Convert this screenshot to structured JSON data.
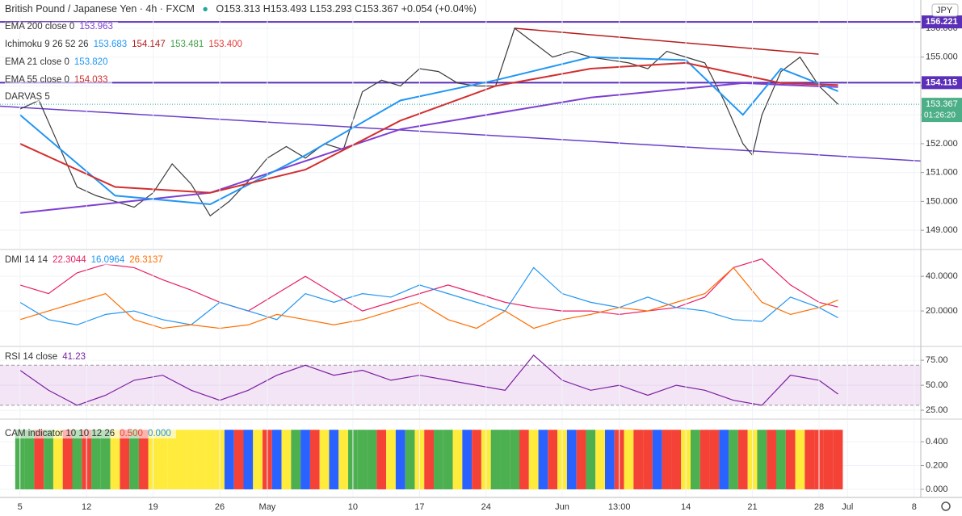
{
  "header": {
    "title": "British Pound / Japanese Yen · 4h · FXCM",
    "ohlc": "O153.313 H153.493 L153.293 C153.367 +0.054 (+0.04%)",
    "currency": "JPY",
    "countdown": "01:26:20"
  },
  "chart_data": [
    {
      "type": "line",
      "xlim": [
        -2.1,
        94.7
      ],
      "ylim": [
        148.36,
        156.98
      ],
      "yticks": [
        {
          "value": 149,
          "label": "149.000"
        },
        {
          "value": 150,
          "label": "150.000"
        },
        {
          "value": 151,
          "label": "151.000"
        },
        {
          "value": 152,
          "label": "152.000"
        },
        {
          "value": 153,
          "label": "153.000"
        },
        {
          "value": 154,
          "label": "154.000"
        },
        {
          "value": 155,
          "label": "155.000"
        },
        {
          "value": 156,
          "label": "156.000"
        }
      ],
      "series": [
        {
          "color": "#3b3b3b",
          "x": [
            0,
            2,
            4,
            6,
            8,
            10,
            12,
            14,
            16,
            18,
            20,
            22,
            24,
            26,
            28,
            30,
            32,
            34,
            36,
            38,
            40,
            42,
            44,
            46,
            48,
            50,
            52,
            54,
            56,
            58,
            60,
            62,
            64,
            66,
            68,
            70,
            72,
            74,
            76,
            77,
            78,
            80,
            82,
            84,
            86
          ],
          "values": [
            153.2,
            153.5,
            152.0,
            150.5,
            150.2,
            150.0,
            149.8,
            150.3,
            151.3,
            150.6,
            149.5,
            150.0,
            150.7,
            151.5,
            151.9,
            151.5,
            152.0,
            151.8,
            153.8,
            154.2,
            154.0,
            154.6,
            154.5,
            154.1,
            154.0,
            154.0,
            156.0,
            155.5,
            155.0,
            155.2,
            155.0,
            154.9,
            154.8,
            154.6,
            155.2,
            155.0,
            154.8,
            153.5,
            152.0,
            151.6,
            153.0,
            154.5,
            155.0,
            154.0,
            153.367
          ]
        },
        {
          "name": "EMA 200 close 0",
          "legend_value": "153.963",
          "color": "#7e3fd1",
          "x": [
            0,
            20,
            40,
            60,
            76,
            86
          ],
          "values": [
            149.6,
            150.3,
            152.5,
            153.6,
            154.1,
            153.963
          ]
        },
        {
          "name": "EMA 21 close 0",
          "legend_value": "153.820",
          "color": "#2196f3",
          "x": [
            0,
            10,
            20,
            30,
            40,
            50,
            60,
            70,
            76,
            80,
            86
          ],
          "values": [
            153.0,
            150.2,
            149.9,
            151.6,
            153.5,
            154.2,
            155.0,
            154.9,
            153.0,
            154.6,
            153.82
          ]
        },
        {
          "name": "EMA 55 close 0",
          "legend_value": "154.033",
          "color": "#d32f2f",
          "x": [
            0,
            10,
            20,
            30,
            40,
            50,
            60,
            70,
            80,
            86
          ],
          "values": [
            152.0,
            150.5,
            150.3,
            151.1,
            152.8,
            154.0,
            154.6,
            154.8,
            154.1,
            154.033
          ]
        }
      ],
      "ichimoku": {
        "name": "Ichimoku 9 26 52 26",
        "legend_values": [
          "153.683",
          "154.147",
          "153.481",
          "153.400"
        ],
        "colors": [
          "#2196f3",
          "#b71c1c",
          "#43a047",
          "#e53935"
        ]
      },
      "darvas": "DARVAS 5",
      "levels": [
        {
          "value": 156.221,
          "label": "156.221",
          "color": "#5b2fb8"
        },
        {
          "value": 154.115,
          "label": "154.115",
          "color": "#5b2fb8"
        }
      ],
      "trendlines": [
        {
          "x": [
            -2.1,
            94.7
          ],
          "values": [
            153.3,
            151.4
          ],
          "color": "#6a3fc8"
        },
        {
          "x": [
            52,
            84
          ],
          "values": [
            156.0,
            155.1
          ],
          "color": "#b71c1c"
        }
      ]
    },
    {
      "type": "line",
      "title": "DMI 14 14",
      "xlim": [
        -2.1,
        94.7
      ],
      "ylim": [
        0,
        55
      ],
      "yticks": [
        {
          "value": 20,
          "label": "20.0000"
        },
        {
          "value": 40,
          "label": "40.0000"
        }
      ],
      "series": [
        {
          "legend_value": "22.3044",
          "color": "#e91e63",
          "x": [
            0,
            3,
            6,
            9,
            12,
            15,
            18,
            21,
            24,
            27,
            30,
            33,
            36,
            39,
            42,
            45,
            48,
            51,
            54,
            57,
            60,
            63,
            66,
            69,
            72,
            75,
            78,
            81,
            84,
            86
          ],
          "values": [
            35,
            30,
            42,
            47,
            45,
            38,
            32,
            25,
            20,
            30,
            40,
            30,
            20,
            25,
            30,
            35,
            30,
            25,
            22,
            20,
            20,
            18,
            20,
            22,
            28,
            45,
            50,
            35,
            25,
            22.3
          ]
        },
        {
          "legend_value": "16.0964",
          "color": "#2196f3",
          "x": [
            0,
            3,
            6,
            9,
            12,
            15,
            18,
            21,
            24,
            27,
            30,
            33,
            36,
            39,
            42,
            45,
            48,
            51,
            54,
            57,
            60,
            63,
            66,
            69,
            72,
            75,
            78,
            81,
            84,
            86
          ],
          "values": [
            25,
            15,
            12,
            18,
            20,
            15,
            12,
            25,
            20,
            15,
            30,
            25,
            30,
            28,
            35,
            30,
            25,
            20,
            45,
            30,
            25,
            22,
            28,
            22,
            20,
            15,
            14,
            28,
            22,
            16.1
          ]
        },
        {
          "legend_value": "26.3137",
          "color": "#ff6d00",
          "x": [
            0,
            3,
            6,
            9,
            12,
            15,
            18,
            21,
            24,
            27,
            30,
            33,
            36,
            39,
            42,
            45,
            48,
            51,
            54,
            57,
            60,
            63,
            66,
            69,
            72,
            75,
            78,
            81,
            84,
            86
          ],
          "values": [
            15,
            20,
            25,
            30,
            15,
            10,
            12,
            10,
            12,
            18,
            15,
            12,
            15,
            20,
            25,
            15,
            10,
            20,
            10,
            15,
            18,
            22,
            20,
            25,
            30,
            45,
            25,
            18,
            22,
            26.3
          ]
        }
      ]
    },
    {
      "type": "line",
      "title": "RSI 14 close",
      "xlim": [
        -2.1,
        94.7
      ],
      "ylim": [
        17,
        88
      ],
      "band": [
        30,
        70
      ],
      "yticks": [
        {
          "value": 25,
          "label": "25.00"
        },
        {
          "value": 50,
          "label": "50.00"
        },
        {
          "value": 75,
          "label": "75.00"
        }
      ],
      "series": [
        {
          "legend_value": "41.23",
          "color": "#7b1fa2",
          "x": [
            0,
            3,
            6,
            9,
            12,
            15,
            18,
            21,
            24,
            27,
            30,
            33,
            36,
            39,
            42,
            45,
            48,
            51,
            54,
            57,
            60,
            63,
            66,
            69,
            72,
            75,
            78,
            81,
            84,
            86
          ],
          "values": [
            65,
            45,
            30,
            40,
            55,
            60,
            45,
            35,
            45,
            60,
            70,
            60,
            65,
            55,
            60,
            55,
            50,
            45,
            80,
            55,
            45,
            50,
            40,
            50,
            45,
            35,
            30,
            60,
            55,
            41.23
          ]
        }
      ]
    },
    {
      "type": "bar",
      "title": "CAM indicator 10 10 12 26",
      "xlim": [
        -2.1,
        94.7
      ],
      "ylim": [
        -0.068,
        0.583
      ],
      "cam_value": 0.5,
      "cam_value_label": "0.500",
      "cam_zero_label": "0.000",
      "yticks": [
        {
          "value": 0,
          "label": "0.000"
        },
        {
          "value": 0.2,
          "label": "0.200"
        },
        {
          "value": 0.4,
          "label": "0.400"
        }
      ],
      "x": [
        0,
        1,
        2,
        3,
        4,
        5,
        6,
        7,
        8,
        9,
        10,
        11,
        12,
        13,
        14,
        15,
        16,
        17,
        18,
        19,
        20,
        21,
        22,
        23,
        24,
        25,
        26,
        27,
        28,
        29,
        30,
        31,
        32,
        33,
        34,
        35,
        36,
        37,
        38,
        39,
        40,
        41,
        42,
        43,
        44,
        45,
        46,
        47,
        48,
        49,
        50,
        51,
        52,
        53,
        54,
        55,
        56,
        57,
        58,
        59,
        60,
        61,
        62,
        63,
        64,
        65,
        66,
        67,
        68,
        69,
        70,
        71,
        72,
        73,
        74,
        75,
        76,
        77,
        78,
        79,
        80,
        81,
        82,
        83,
        84,
        85,
        86
      ],
      "colors": [
        "#4caf50",
        "#4caf50",
        "#f44336",
        "#4caf50",
        "#ffeb3b",
        "#f44336",
        "#4caf50",
        "#f44336",
        "#4caf50",
        "#4caf50",
        "#ffeb3b",
        "#f44336",
        "#4caf50",
        "#f44336",
        "#ffeb3b",
        "#ffeb3b",
        "#ffeb3b",
        "#ffeb3b",
        "#ffeb3b",
        "#ffeb3b",
        "#ffeb3b",
        "#ffeb3b",
        "#2962ff",
        "#f44336",
        "#2962ff",
        "#ffeb3b",
        "#f44336",
        "#2962ff",
        "#ffeb3b",
        "#4caf50",
        "#2962ff",
        "#f44336",
        "#ffeb3b",
        "#2962ff",
        "#ffeb3b",
        "#4caf50",
        "#4caf50",
        "#4caf50",
        "#f44336",
        "#ffeb3b",
        "#2962ff",
        "#4caf50",
        "#ffeb3b",
        "#f44336",
        "#4caf50",
        "#4caf50",
        "#ffeb3b",
        "#2962ff",
        "#f44336",
        "#ffeb3b",
        "#4caf50",
        "#4caf50",
        "#4caf50",
        "#f44336",
        "#ffeb3b",
        "#2962ff",
        "#f44336",
        "#ffeb3b",
        "#2962ff",
        "#f44336",
        "#4caf50",
        "#ffeb3b",
        "#2962ff",
        "#f44336",
        "#ffeb3b",
        "#f44336",
        "#f44336",
        "#2962ff",
        "#f44336",
        "#f44336",
        "#ffeb3b",
        "#4caf50",
        "#f44336",
        "#f44336",
        "#2962ff",
        "#4caf50",
        "#f44336",
        "#ffeb3b",
        "#4caf50",
        "#f44336",
        "#4caf50",
        "#f44336",
        "#ffeb3b",
        "#f44336",
        "#f44336",
        "#f44336",
        "#f44336"
      ],
      "xticks": [
        {
          "value": 0,
          "label": "5"
        },
        {
          "value": 7,
          "label": "12"
        },
        {
          "value": 14,
          "label": "19"
        },
        {
          "value": 21,
          "label": "26"
        },
        {
          "value": 26,
          "label": "May"
        },
        {
          "value": 35,
          "label": "10"
        },
        {
          "value": 42,
          "label": "17"
        },
        {
          "value": 49,
          "label": "24"
        },
        {
          "value": 57,
          "label": "Jun"
        },
        {
          "value": 63,
          "label": "13:00"
        },
        {
          "value": 70,
          "label": "14"
        },
        {
          "value": 77,
          "label": "21"
        },
        {
          "value": 84,
          "label": "28"
        },
        {
          "value": 87,
          "label": "Jul"
        },
        {
          "value": 94,
          "label": "8"
        }
      ]
    }
  ]
}
